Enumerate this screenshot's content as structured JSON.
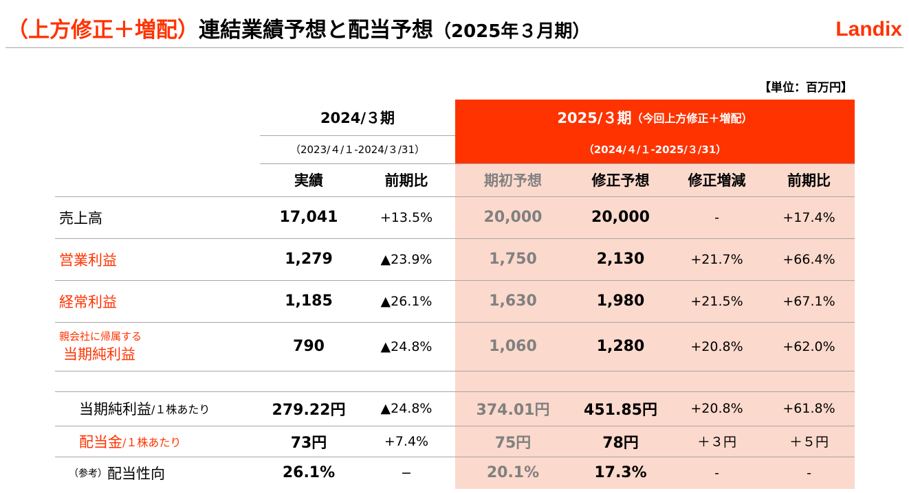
{
  "title": {
    "prefix": "（上方修正＋増配）",
    "main": "連結業績予想と配当予想",
    "period": "（2025年３月期）"
  },
  "logo": "Landix",
  "unit": "【単位：百万円】",
  "headers": {
    "prev_period": "2024/３期",
    "prev_range": "（2023/４/１-2024/３/31）",
    "cur_period": "2025/３期",
    "cur_note": "（今回上方修正＋増配）",
    "cur_range": "（2024/４/１-2025/３/31）",
    "cols": [
      "実績",
      "前期比",
      "期初予想",
      "修正予想",
      "修正増減",
      "前期比"
    ]
  },
  "rows": [
    {
      "label": "売上高",
      "values": [
        "17,041",
        "+13.5%",
        "20,000",
        "20,000",
        "-",
        "+17.4%"
      ]
    },
    {
      "label": "営業利益",
      "highlight": true,
      "values": [
        "1,279",
        "▲23.9%",
        "1,750",
        "2,130",
        "+21.7%",
        "+66.4%"
      ]
    },
    {
      "label": "経常利益",
      "highlight": true,
      "values": [
        "1,185",
        "▲26.1%",
        "1,630",
        "1,980",
        "+21.5%",
        "+67.1%"
      ]
    },
    {
      "label_small": "親会社に帰属する",
      "label": "当期純利益",
      "highlight": true,
      "values": [
        "790",
        "▲24.8%",
        "1,060",
        "1,280",
        "+20.8%",
        "+62.0%"
      ]
    }
  ],
  "rows2": [
    {
      "label": "当期純利益",
      "suffix": "/１株あたり",
      "values": [
        "279.22円",
        "▲24.8%",
        "374.01円",
        "451.85円",
        "+20.8%",
        "+61.8%"
      ]
    },
    {
      "label": "配当金",
      "suffix": "/１株あたり",
      "highlight": true,
      "values": [
        "73円",
        "+7.4%",
        "75円",
        "78円",
        "＋３円",
        "＋５円"
      ]
    },
    {
      "prefix": "（参考）",
      "label": "配当性向",
      "values": [
        "26.1%",
        "−",
        "20.1%",
        "17.3%",
        "-",
        "-"
      ]
    }
  ],
  "colors": {
    "accent": "#ff3300",
    "pink": "#fbd9cc"
  }
}
